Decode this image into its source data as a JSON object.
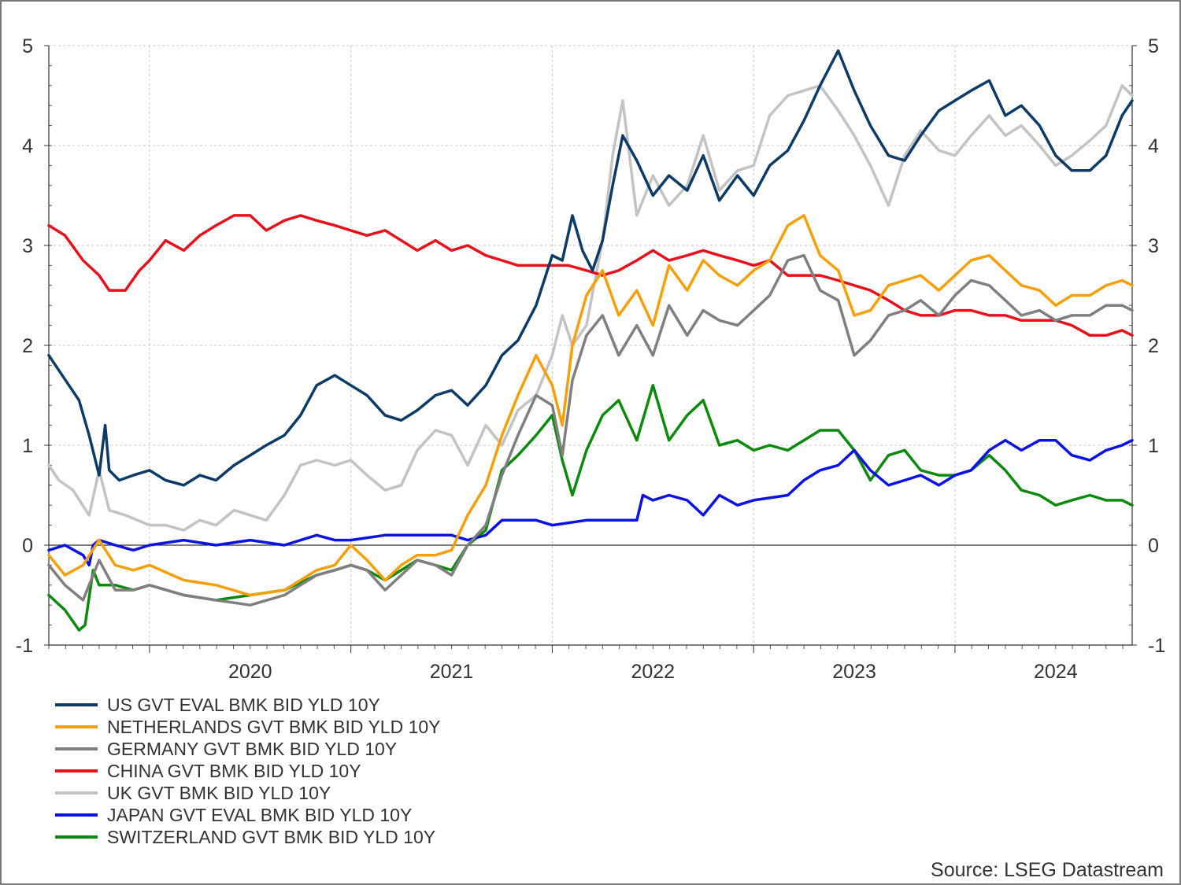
{
  "chart_data": {
    "type": "line",
    "title": "",
    "xlabel": "",
    "ylabel": "",
    "ylim": [
      -1,
      5
    ],
    "yticks": [
      -1,
      0,
      1,
      2,
      3,
      4,
      5
    ],
    "xlim": [
      2019.5,
      2024.88
    ],
    "xtick_labels": [
      "2020",
      "2021",
      "2022",
      "2023",
      "2024"
    ],
    "year_boundaries": [
      2020,
      2021,
      2022,
      2023,
      2024
    ],
    "grid": true,
    "secondary_y_axis": true,
    "legend_position": "bottom-left",
    "source": "Source: LSEG Datastream",
    "series": [
      {
        "name": "US GVT EVAL BMK BID YLD 10Y",
        "color": "#0d3b66",
        "x": [
          2019.5,
          2019.55,
          2019.6,
          2019.65,
          2019.7,
          2019.75,
          2019.78,
          2019.8,
          2019.85,
          2019.92,
          2020.0,
          2020.08,
          2020.17,
          2020.25,
          2020.33,
          2020.42,
          2020.5,
          2020.58,
          2020.67,
          2020.75,
          2020.83,
          2020.92,
          2021.0,
          2021.08,
          2021.17,
          2021.25,
          2021.33,
          2021.42,
          2021.5,
          2021.58,
          2021.67,
          2021.75,
          2021.83,
          2021.92,
          2022.0,
          2022.05,
          2022.1,
          2022.15,
          2022.2,
          2022.25,
          2022.3,
          2022.35,
          2022.42,
          2022.5,
          2022.58,
          2022.67,
          2022.75,
          2022.83,
          2022.92,
          2023.0,
          2023.08,
          2023.17,
          2023.25,
          2023.33,
          2023.42,
          2023.5,
          2023.58,
          2023.67,
          2023.75,
          2023.83,
          2023.92,
          2024.0,
          2024.08,
          2024.17,
          2024.25,
          2024.33,
          2024.42,
          2024.5,
          2024.58,
          2024.67,
          2024.75,
          2024.83,
          2024.88
        ],
        "values": [
          1.9,
          1.75,
          1.6,
          1.45,
          1.1,
          0.7,
          1.2,
          0.75,
          0.65,
          0.7,
          0.75,
          0.65,
          0.6,
          0.7,
          0.65,
          0.8,
          0.9,
          1.0,
          1.1,
          1.3,
          1.6,
          1.7,
          1.6,
          1.5,
          1.3,
          1.25,
          1.35,
          1.5,
          1.55,
          1.4,
          1.6,
          1.9,
          2.05,
          2.4,
          2.9,
          2.85,
          3.3,
          2.95,
          2.75,
          3.05,
          3.6,
          4.1,
          3.85,
          3.5,
          3.7,
          3.55,
          3.9,
          3.45,
          3.7,
          3.5,
          3.8,
          3.95,
          4.25,
          4.6,
          4.95,
          4.55,
          4.2,
          3.9,
          3.85,
          4.1,
          4.35,
          4.45,
          4.55,
          4.65,
          4.3,
          4.4,
          4.2,
          3.9,
          3.75,
          3.75,
          3.9,
          4.3,
          4.45
        ]
      },
      {
        "name": "NETHERLANDS GVT BMK BID YLD 10Y",
        "color": "#f5a00a",
        "x": [
          2019.5,
          2019.58,
          2019.67,
          2019.75,
          2019.83,
          2019.92,
          2020.0,
          2020.17,
          2020.33,
          2020.5,
          2020.67,
          2020.83,
          2020.92,
          2021.0,
          2021.08,
          2021.17,
          2021.25,
          2021.33,
          2021.42,
          2021.5,
          2021.58,
          2021.67,
          2021.75,
          2021.83,
          2021.92,
          2022.0,
          2022.05,
          2022.1,
          2022.17,
          2022.25,
          2022.33,
          2022.42,
          2022.5,
          2022.58,
          2022.67,
          2022.75,
          2022.83,
          2022.92,
          2023.0,
          2023.08,
          2023.17,
          2023.25,
          2023.33,
          2023.42,
          2023.5,
          2023.58,
          2023.67,
          2023.75,
          2023.83,
          2023.92,
          2024.0,
          2024.08,
          2024.17,
          2024.25,
          2024.33,
          2024.42,
          2024.5,
          2024.58,
          2024.67,
          2024.75,
          2024.83,
          2024.88
        ],
        "values": [
          -0.1,
          -0.3,
          -0.2,
          0.05,
          -0.2,
          -0.25,
          -0.2,
          -0.35,
          -0.4,
          -0.5,
          -0.45,
          -0.25,
          -0.2,
          0.0,
          -0.15,
          -0.35,
          -0.2,
          -0.1,
          -0.1,
          -0.05,
          0.3,
          0.6,
          1.1,
          1.5,
          1.9,
          1.6,
          1.2,
          2.0,
          2.5,
          2.75,
          2.3,
          2.55,
          2.2,
          2.8,
          2.55,
          2.85,
          2.7,
          2.6,
          2.75,
          2.85,
          3.2,
          3.3,
          2.9,
          2.75,
          2.3,
          2.35,
          2.6,
          2.65,
          2.7,
          2.55,
          2.7,
          2.85,
          2.9,
          2.75,
          2.6,
          2.55,
          2.4,
          2.5,
          2.5,
          2.6,
          2.65,
          2.6
        ]
      },
      {
        "name": "GERMANY GVT BMK BID YLD 10Y",
        "color": "#7f7f7f",
        "x": [
          2019.5,
          2019.58,
          2019.67,
          2019.75,
          2019.83,
          2019.92,
          2020.0,
          2020.17,
          2020.33,
          2020.5,
          2020.67,
          2020.83,
          2020.92,
          2021.0,
          2021.08,
          2021.17,
          2021.25,
          2021.33,
          2021.42,
          2021.5,
          2021.58,
          2021.67,
          2021.75,
          2021.83,
          2021.92,
          2022.0,
          2022.05,
          2022.1,
          2022.17,
          2022.25,
          2022.33,
          2022.42,
          2022.5,
          2022.58,
          2022.67,
          2022.75,
          2022.83,
          2022.92,
          2023.0,
          2023.08,
          2023.17,
          2023.25,
          2023.33,
          2023.42,
          2023.5,
          2023.58,
          2023.67,
          2023.75,
          2023.83,
          2023.92,
          2024.0,
          2024.08,
          2024.17,
          2024.25,
          2024.33,
          2024.42,
          2024.5,
          2024.58,
          2024.67,
          2024.75,
          2024.83,
          2024.88
        ],
        "values": [
          -0.2,
          -0.4,
          -0.55,
          -0.15,
          -0.45,
          -0.45,
          -0.4,
          -0.5,
          -0.55,
          -0.6,
          -0.5,
          -0.3,
          -0.25,
          -0.2,
          -0.25,
          -0.45,
          -0.3,
          -0.15,
          -0.2,
          -0.3,
          0.0,
          0.2,
          0.7,
          1.1,
          1.5,
          1.4,
          0.9,
          1.65,
          2.1,
          2.3,
          1.9,
          2.2,
          1.9,
          2.4,
          2.1,
          2.35,
          2.25,
          2.2,
          2.35,
          2.5,
          2.85,
          2.9,
          2.55,
          2.45,
          1.9,
          2.05,
          2.3,
          2.35,
          2.45,
          2.3,
          2.5,
          2.65,
          2.6,
          2.45,
          2.3,
          2.35,
          2.25,
          2.3,
          2.3,
          2.4,
          2.4,
          2.35
        ]
      },
      {
        "name": "CHINA GVT BMK BID YLD 10Y",
        "color": "#e8101a",
        "x": [
          2019.5,
          2019.58,
          2019.67,
          2019.75,
          2019.8,
          2019.88,
          2019.95,
          2020.0,
          2020.08,
          2020.17,
          2020.25,
          2020.33,
          2020.42,
          2020.5,
          2020.58,
          2020.67,
          2020.75,
          2020.83,
          2020.92,
          2021.0,
          2021.08,
          2021.17,
          2021.25,
          2021.33,
          2021.42,
          2021.5,
          2021.58,
          2021.67,
          2021.75,
          2021.83,
          2021.92,
          2022.0,
          2022.08,
          2022.17,
          2022.25,
          2022.33,
          2022.42,
          2022.5,
          2022.58,
          2022.67,
          2022.75,
          2022.83,
          2022.92,
          2023.0,
          2023.08,
          2023.17,
          2023.25,
          2023.33,
          2023.42,
          2023.5,
          2023.58,
          2023.67,
          2023.75,
          2023.83,
          2023.92,
          2024.0,
          2024.08,
          2024.17,
          2024.25,
          2024.33,
          2024.42,
          2024.5,
          2024.58,
          2024.67,
          2024.75,
          2024.83,
          2024.88
        ],
        "values": [
          3.2,
          3.1,
          2.85,
          2.7,
          2.55,
          2.55,
          2.75,
          2.85,
          3.05,
          2.95,
          3.1,
          3.2,
          3.3,
          3.3,
          3.15,
          3.25,
          3.3,
          3.25,
          3.2,
          3.15,
          3.1,
          3.15,
          3.05,
          2.95,
          3.05,
          2.95,
          3.0,
          2.9,
          2.85,
          2.8,
          2.8,
          2.8,
          2.8,
          2.75,
          2.7,
          2.75,
          2.85,
          2.95,
          2.85,
          2.9,
          2.95,
          2.9,
          2.85,
          2.8,
          2.85,
          2.7,
          2.7,
          2.7,
          2.65,
          2.6,
          2.55,
          2.45,
          2.35,
          2.3,
          2.3,
          2.35,
          2.35,
          2.3,
          2.3,
          2.25,
          2.25,
          2.25,
          2.2,
          2.1,
          2.1,
          2.15,
          2.1
        ]
      },
      {
        "name": "UK GVT BMK BID YLD 10Y",
        "color": "#c3c3c3",
        "x": [
          2019.5,
          2019.55,
          2019.62,
          2019.7,
          2019.75,
          2019.8,
          2019.88,
          2020.0,
          2020.08,
          2020.17,
          2020.25,
          2020.33,
          2020.42,
          2020.5,
          2020.58,
          2020.67,
          2020.75,
          2020.83,
          2020.92,
          2021.0,
          2021.08,
          2021.17,
          2021.25,
          2021.33,
          2021.42,
          2021.5,
          2021.58,
          2021.67,
          2021.75,
          2021.83,
          2021.92,
          2022.0,
          2022.05,
          2022.1,
          2022.17,
          2022.25,
          2022.3,
          2022.35,
          2022.42,
          2022.5,
          2022.58,
          2022.67,
          2022.75,
          2022.83,
          2022.92,
          2023.0,
          2023.08,
          2023.17,
          2023.25,
          2023.33,
          2023.42,
          2023.5,
          2023.58,
          2023.67,
          2023.75,
          2023.83,
          2023.92,
          2024.0,
          2024.08,
          2024.17,
          2024.25,
          2024.33,
          2024.42,
          2024.5,
          2024.58,
          2024.67,
          2024.75,
          2024.83,
          2024.88
        ],
        "values": [
          0.8,
          0.65,
          0.55,
          0.3,
          0.75,
          0.35,
          0.3,
          0.2,
          0.2,
          0.15,
          0.25,
          0.2,
          0.35,
          0.3,
          0.25,
          0.5,
          0.8,
          0.85,
          0.8,
          0.85,
          0.7,
          0.55,
          0.6,
          0.95,
          1.15,
          1.1,
          0.8,
          1.2,
          1.0,
          1.35,
          1.5,
          1.9,
          2.3,
          2.0,
          2.2,
          3.05,
          3.9,
          4.45,
          3.3,
          3.7,
          3.4,
          3.6,
          4.1,
          3.55,
          3.75,
          3.8,
          4.3,
          4.5,
          4.55,
          4.6,
          4.35,
          4.1,
          3.8,
          3.4,
          3.9,
          4.15,
          3.95,
          3.9,
          4.1,
          4.3,
          4.1,
          4.2,
          4.0,
          3.8,
          3.9,
          4.05,
          4.2,
          4.6,
          4.5
        ]
      },
      {
        "name": "JAPAN GVT EVAL BMK BID YLD 10Y",
        "color": "#0a12e6",
        "x": [
          2019.5,
          2019.58,
          2019.67,
          2019.7,
          2019.72,
          2019.75,
          2019.83,
          2019.92,
          2020.0,
          2020.17,
          2020.33,
          2020.5,
          2020.67,
          2020.83,
          2020.92,
          2021.0,
          2021.17,
          2021.33,
          2021.5,
          2021.58,
          2021.67,
          2021.75,
          2021.83,
          2021.92,
          2022.0,
          2022.17,
          2022.33,
          2022.42,
          2022.45,
          2022.5,
          2022.58,
          2022.67,
          2022.75,
          2022.83,
          2022.92,
          2023.0,
          2023.17,
          2023.25,
          2023.33,
          2023.42,
          2023.5,
          2023.58,
          2023.67,
          2023.75,
          2023.83,
          2023.92,
          2024.0,
          2024.08,
          2024.17,
          2024.25,
          2024.33,
          2024.42,
          2024.5,
          2024.58,
          2024.67,
          2024.75,
          2024.83,
          2024.88
        ],
        "values": [
          -0.05,
          0.0,
          -0.1,
          -0.2,
          0.0,
          0.05,
          0.0,
          -0.05,
          0.0,
          0.05,
          0.0,
          0.05,
          0.0,
          0.1,
          0.05,
          0.05,
          0.1,
          0.1,
          0.1,
          0.05,
          0.1,
          0.25,
          0.25,
          0.25,
          0.2,
          0.25,
          0.25,
          0.25,
          0.5,
          0.45,
          0.5,
          0.45,
          0.3,
          0.5,
          0.4,
          0.45,
          0.5,
          0.65,
          0.75,
          0.8,
          0.95,
          0.75,
          0.6,
          0.65,
          0.7,
          0.6,
          0.7,
          0.75,
          0.95,
          1.05,
          0.95,
          1.05,
          1.05,
          0.9,
          0.85,
          0.95,
          1.0,
          1.05
        ]
      },
      {
        "name": "SWITZERLAND GVT BMK BID YLD 10Y",
        "color": "#0c8a0e",
        "x": [
          2019.5,
          2019.58,
          2019.65,
          2019.68,
          2019.72,
          2019.75,
          2019.83,
          2019.92,
          2020.0,
          2020.17,
          2020.33,
          2020.5,
          2020.67,
          2020.83,
          2020.92,
          2021.0,
          2021.08,
          2021.17,
          2021.25,
          2021.33,
          2021.42,
          2021.5,
          2021.58,
          2021.67,
          2021.75,
          2021.83,
          2021.92,
          2022.0,
          2022.05,
          2022.1,
          2022.17,
          2022.25,
          2022.33,
          2022.42,
          2022.5,
          2022.58,
          2022.67,
          2022.75,
          2022.83,
          2022.92,
          2023.0,
          2023.08,
          2023.17,
          2023.25,
          2023.33,
          2023.42,
          2023.5,
          2023.58,
          2023.67,
          2023.75,
          2023.83,
          2023.92,
          2024.0,
          2024.08,
          2024.17,
          2024.25,
          2024.33,
          2024.42,
          2024.5,
          2024.58,
          2024.67,
          2024.75,
          2024.83,
          2024.88
        ],
        "values": [
          -0.5,
          -0.65,
          -0.85,
          -0.8,
          -0.25,
          -0.4,
          -0.4,
          -0.45,
          -0.4,
          -0.5,
          -0.55,
          -0.5,
          -0.45,
          -0.3,
          -0.25,
          -0.2,
          -0.25,
          -0.35,
          -0.25,
          -0.15,
          -0.2,
          -0.25,
          0.0,
          0.15,
          0.75,
          0.9,
          1.1,
          1.3,
          0.85,
          0.5,
          0.95,
          1.3,
          1.45,
          1.05,
          1.6,
          1.05,
          1.3,
          1.45,
          1.0,
          1.05,
          0.95,
          1.0,
          0.95,
          1.05,
          1.15,
          1.15,
          0.95,
          0.65,
          0.9,
          0.95,
          0.75,
          0.7,
          0.7,
          0.75,
          0.9,
          0.75,
          0.55,
          0.5,
          0.4,
          0.45,
          0.5,
          0.45,
          0.45,
          0.4
        ]
      }
    ]
  }
}
